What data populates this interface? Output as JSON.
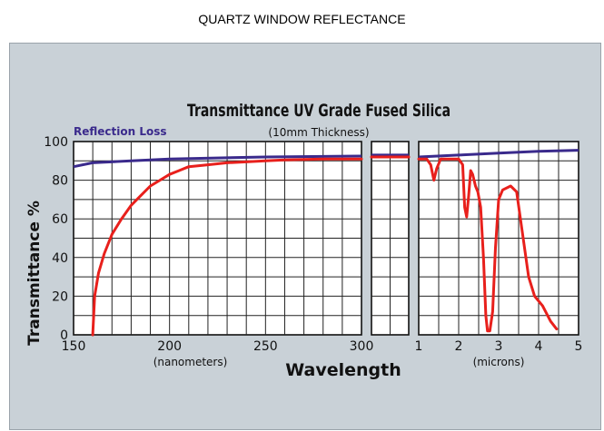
{
  "page_title": "QUARTZ WINDOW REFLECTANCE",
  "chart_data": {
    "type": "line",
    "title": "Transmittance UV Grade Fused Silica",
    "subtitle": "(10mm Thickness)",
    "ylabel": "Transmittance %",
    "xlabel": "Wavelength",
    "ylim": [
      0,
      100
    ],
    "yticks": [
      "0",
      "20",
      "40",
      "60",
      "80",
      "100"
    ],
    "legend_label": "Reflection Loss",
    "colors": {
      "transmittance": "#e8201c",
      "reflection_loss": "#3a2a8c"
    },
    "panels": [
      {
        "name": "nanometers",
        "unit_label": "(nanometers)",
        "xlim": [
          150,
          300
        ],
        "xticks": [
          "150",
          "200",
          "250",
          "300"
        ],
        "transmittance": [
          [
            160,
            0
          ],
          [
            161,
            20
          ],
          [
            163,
            32
          ],
          [
            166,
            42
          ],
          [
            170,
            52
          ],
          [
            175,
            60
          ],
          [
            180,
            67
          ],
          [
            185,
            72
          ],
          [
            190,
            77
          ],
          [
            195,
            80
          ],
          [
            200,
            83
          ],
          [
            205,
            85
          ],
          [
            210,
            87
          ],
          [
            220,
            88
          ],
          [
            230,
            89
          ],
          [
            240,
            89.5
          ],
          [
            250,
            90
          ],
          [
            260,
            90.5
          ],
          [
            280,
            91
          ],
          [
            300,
            91
          ]
        ],
        "reflection_loss": [
          [
            150,
            87
          ],
          [
            160,
            89
          ],
          [
            180,
            90
          ],
          [
            200,
            91
          ],
          [
            250,
            92
          ],
          [
            300,
            92.5
          ]
        ]
      },
      {
        "name": "break",
        "unit_label": "",
        "xlim": [
          0,
          1
        ],
        "xticks": [],
        "transmittance": [
          [
            0,
            92
          ],
          [
            1,
            92
          ]
        ],
        "reflection_loss": [
          [
            0,
            93
          ],
          [
            1,
            93
          ]
        ]
      },
      {
        "name": "microns",
        "unit_label": "(microns)",
        "xlim": [
          1,
          5
        ],
        "xticks": [
          "1",
          "2",
          "3",
          "4",
          "5"
        ],
        "transmittance": [
          [
            1.0,
            91
          ],
          [
            1.2,
            91
          ],
          [
            1.3,
            88
          ],
          [
            1.38,
            80
          ],
          [
            1.45,
            86
          ],
          [
            1.55,
            91
          ],
          [
            2.0,
            91
          ],
          [
            2.1,
            88
          ],
          [
            2.15,
            66
          ],
          [
            2.2,
            61
          ],
          [
            2.25,
            72
          ],
          [
            2.3,
            85
          ],
          [
            2.35,
            83
          ],
          [
            2.42,
            77
          ],
          [
            2.48,
            74
          ],
          [
            2.55,
            66
          ],
          [
            2.62,
            40
          ],
          [
            2.68,
            10
          ],
          [
            2.72,
            2
          ],
          [
            2.78,
            2
          ],
          [
            2.85,
            12
          ],
          [
            2.92,
            45
          ],
          [
            3.0,
            70
          ],
          [
            3.1,
            75
          ],
          [
            3.3,
            77
          ],
          [
            3.45,
            74
          ],
          [
            3.6,
            52
          ],
          [
            3.75,
            30
          ],
          [
            3.9,
            20
          ],
          [
            4.1,
            15
          ],
          [
            4.3,
            7
          ],
          [
            4.45,
            3
          ]
        ],
        "reflection_loss": [
          [
            1.0,
            92
          ],
          [
            2.0,
            93
          ],
          [
            3.0,
            94
          ],
          [
            4.0,
            95
          ],
          [
            5.0,
            95.5
          ]
        ]
      }
    ]
  }
}
